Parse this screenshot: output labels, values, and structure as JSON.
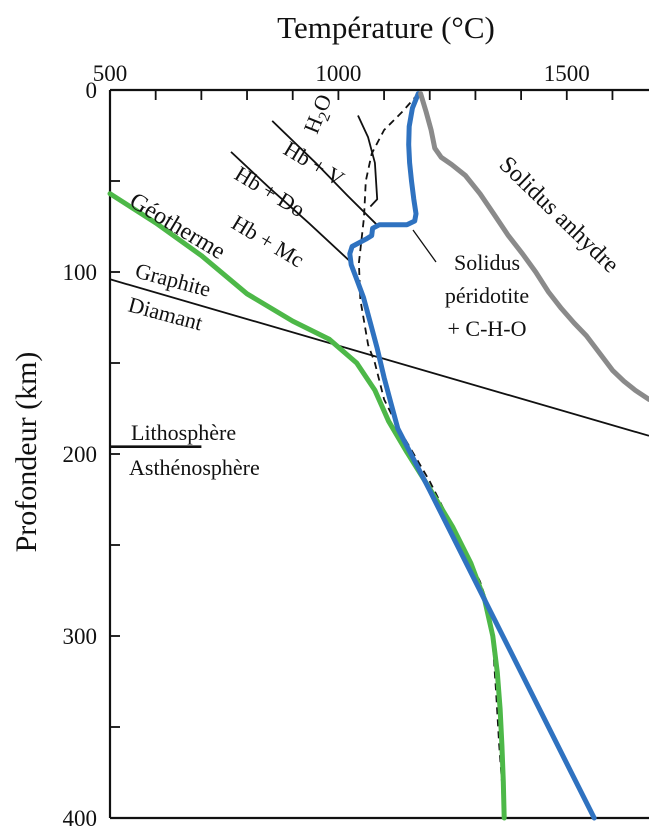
{
  "chart_data": {
    "type": "line",
    "title": "Température (°C)",
    "xlabel": "",
    "ylabel": "Profondeur (km)",
    "xlim": [
      500,
      1680
    ],
    "ylim": [
      400,
      0
    ],
    "x_axis_position": "top",
    "grid": false,
    "x_ticks": [
      500,
      1000,
      1500
    ],
    "y_ticks": [
      0,
      100,
      200,
      300,
      400
    ],
    "series": [
      {
        "name": "Géotherme",
        "color": "#4db848",
        "points": [
          [
            500,
            57
          ],
          [
            600,
            73
          ],
          [
            700,
            91
          ],
          [
            800,
            112
          ],
          [
            900,
            127
          ],
          [
            980,
            137
          ],
          [
            1040,
            150
          ],
          [
            1080,
            165
          ],
          [
            1110,
            182
          ],
          [
            1150,
            199
          ],
          [
            1200,
            219
          ],
          [
            1250,
            240
          ],
          [
            1290,
            260
          ],
          [
            1320,
            280
          ],
          [
            1338,
            300
          ],
          [
            1348,
            320
          ],
          [
            1354,
            340
          ],
          [
            1358,
            360
          ],
          [
            1361,
            380
          ],
          [
            1363,
            400
          ]
        ]
      },
      {
        "name": "Solidus péridotite + C-H-O",
        "color": "#2f72c0",
        "points": [
          [
            1175,
            2
          ],
          [
            1162,
            10
          ],
          [
            1155,
            20
          ],
          [
            1154,
            30
          ],
          [
            1156,
            40
          ],
          [
            1160,
            50
          ],
          [
            1165,
            60
          ],
          [
            1170,
            68
          ],
          [
            1167,
            72
          ],
          [
            1150,
            74
          ],
          [
            1120,
            74
          ],
          [
            1090,
            74
          ],
          [
            1075,
            76
          ],
          [
            1073,
            80
          ],
          [
            1060,
            82
          ],
          [
            1030,
            86
          ],
          [
            1025,
            90
          ],
          [
            1028,
            96
          ],
          [
            1040,
            104
          ],
          [
            1055,
            114
          ],
          [
            1070,
            128
          ],
          [
            1085,
            142
          ],
          [
            1100,
            158
          ],
          [
            1115,
            172
          ],
          [
            1130,
            186
          ],
          [
            1200,
            220
          ],
          [
            1270,
            255
          ],
          [
            1330,
            285
          ],
          [
            1390,
            315
          ],
          [
            1450,
            345
          ],
          [
            1510,
            375
          ],
          [
            1560,
            400
          ]
        ]
      },
      {
        "name": "Solidus anhydre",
        "color": "#8a8a8a",
        "points": [
          [
            1180,
            2
          ],
          [
            1192,
            12
          ],
          [
            1203,
            22
          ],
          [
            1211,
            32
          ],
          [
            1225,
            37
          ],
          [
            1248,
            41
          ],
          [
            1278,
            47
          ],
          [
            1310,
            57
          ],
          [
            1340,
            68
          ],
          [
            1372,
            80
          ],
          [
            1403,
            90
          ],
          [
            1432,
            100
          ],
          [
            1460,
            111
          ],
          [
            1488,
            120
          ],
          [
            1516,
            128
          ],
          [
            1543,
            135
          ],
          [
            1570,
            144
          ],
          [
            1600,
            154
          ],
          [
            1625,
            160
          ],
          [
            1650,
            165
          ],
          [
            1680,
            170
          ]
        ]
      }
    ],
    "boundaries": [
      {
        "name": "Graphite-Diamant",
        "points": [
          [
            500,
            104
          ],
          [
            1680,
            190
          ]
        ]
      },
      {
        "name": "Lithosphère-Asthénosphère",
        "points": [
          [
            500,
            196
          ],
          [
            700,
            196
          ]
        ]
      },
      {
        "name": "H2O",
        "style": "dashed",
        "points": [
          [
            1175,
            2
          ],
          [
            1140,
            12
          ],
          [
            1100,
            22
          ],
          [
            1073,
            35
          ],
          [
            1060,
            50
          ],
          [
            1056,
            70
          ],
          [
            1045,
            95
          ],
          [
            1048,
            115
          ],
          [
            1065,
            140
          ],
          [
            1080,
            150
          ],
          [
            1100,
            170
          ],
          [
            1130,
            185
          ],
          [
            1200,
            215
          ],
          [
            1260,
            245
          ],
          [
            1310,
            270
          ],
          [
            1330,
            285
          ],
          [
            1337,
            300
          ],
          [
            1345,
            330
          ],
          [
            1352,
            360
          ],
          [
            1358,
            380
          ],
          [
            1361,
            400
          ]
        ]
      },
      {
        "name": "Hb-V",
        "points": [
          [
            1043,
            14
          ],
          [
            1065,
            26
          ],
          [
            1080,
            40
          ],
          [
            1085,
            60
          ],
          [
            1070,
            64
          ]
        ]
      },
      {
        "name": "Hb+Do",
        "points": [
          [
            855,
            17
          ],
          [
            950,
            40
          ],
          [
            1020,
            58
          ],
          [
            1084,
            74
          ]
        ]
      },
      {
        "name": "Hb+Mc",
        "points": [
          [
            765,
            34
          ],
          [
            850,
            54
          ],
          [
            935,
            73
          ],
          [
            1025,
            94
          ]
        ]
      }
    ],
    "annotations": [
      {
        "text": "H",
        "sub": "2",
        "text2": "O"
      },
      {
        "text": "Hb + V"
      },
      {
        "text": "Hb + Do"
      },
      {
        "text": "Hb + Mc"
      },
      {
        "text": "Géotherme"
      },
      {
        "text": "Graphite"
      },
      {
        "text": "Diamant"
      },
      {
        "text": "Lithosphère"
      },
      {
        "text": "Asthénosphère"
      },
      {
        "text": "Solidus"
      },
      {
        "text": "péridotite"
      },
      {
        "text": "+ C-H-O"
      },
      {
        "text": "Solidus anhydre"
      }
    ]
  }
}
